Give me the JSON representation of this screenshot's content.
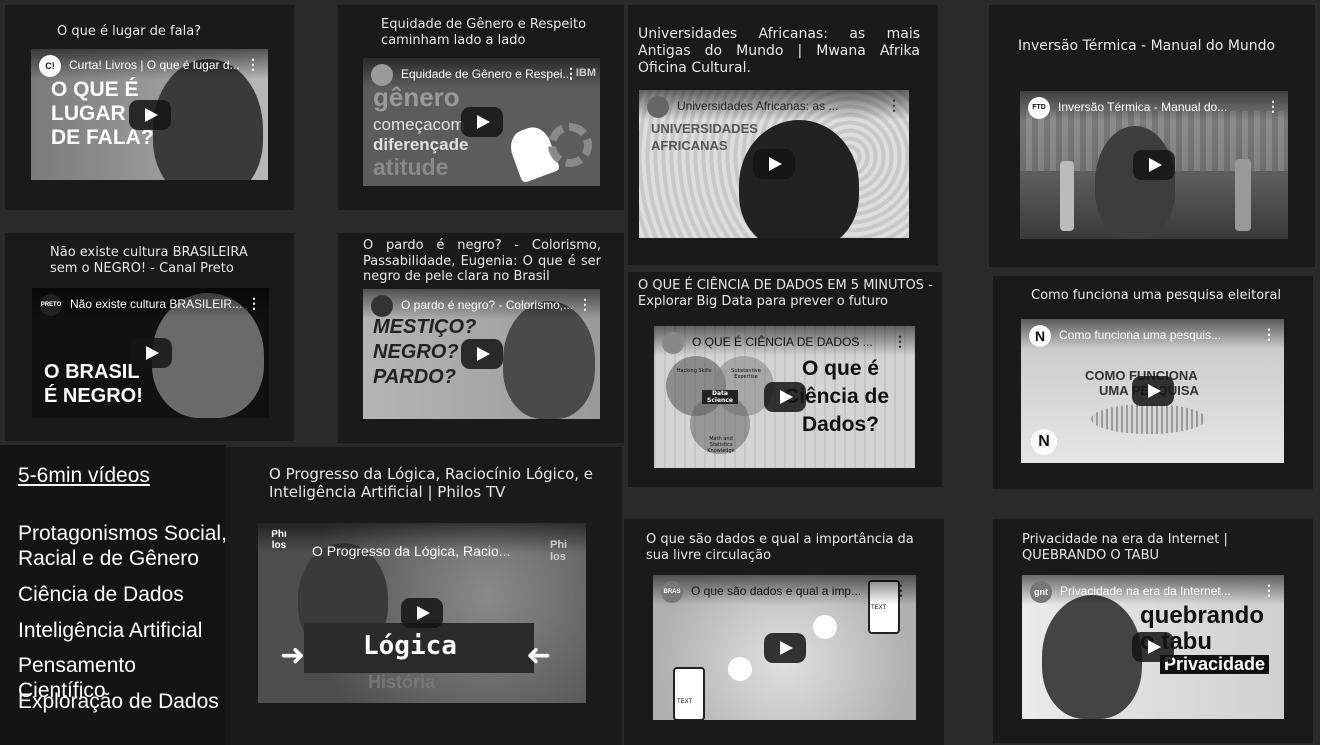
{
  "videos": [
    {
      "card_title": "O que é lugar de fala?",
      "thumb_title": "Curta! Livros | O que é lugar d...",
      "channel": "C!",
      "overlay": [
        "O QUE É",
        "LUGAR",
        "DE FALA?"
      ]
    },
    {
      "card_title": "Equidade de Gênero e Respeito caminham lado a lado",
      "thumb_title": "Equidade de Gênero e Respei...",
      "channel": "",
      "overlay": [
        "gênero",
        "começacom",
        "diferençade",
        "atitude"
      ],
      "corner_mark": "IBM"
    },
    {
      "card_title": "Universidades Africanas: as mais Antigas do Mundo | Mwana Afrika Oficina Cultural.",
      "thumb_title": "Universidades Africanas: as ...",
      "channel": "",
      "overlay": [
        "UNIVERSIDADES",
        "AFRICANAS"
      ]
    },
    {
      "card_title": "Inversão Térmica - Manual do Mundo",
      "thumb_title": "Inversão Térmica - Manual do...",
      "channel": "FTD",
      "overlay": []
    },
    {
      "card_title": "Não existe cultura BRASILEIRA sem o NEGRO! - Canal Preto",
      "thumb_title": "Não existe cultura BRASILEIR...",
      "channel": "PRETO",
      "overlay": [
        "O BRASIL",
        "É NEGRO!"
      ]
    },
    {
      "card_title": "O pardo é negro? - Colorismo, Passabilidade, Eugenia: O que é ser negro de pele clara no Brasil",
      "thumb_title": "O pardo é negro? - Colorismo,...",
      "channel": "",
      "overlay": [
        "MESTIÇO?",
        "NEGRO?",
        "PARDO?"
      ]
    },
    {
      "card_title": "O QUE É CIÊNCIA DE DADOS EM 5 MINUTOS - Explorar Big Data para prever o futuro",
      "thumb_title": "O QUE É CIÊNCIA DE DADOS ...",
      "channel": "",
      "overlay": [
        "O que é",
        "Ciência de",
        "Dados?"
      ],
      "venn": [
        "Hacking Skills",
        "Substantive Expertise",
        "Data Science",
        "Math and Statistics Knowledge"
      ]
    },
    {
      "card_title": "Como funciona uma pesquisa eleitoral",
      "thumb_title": "Como funciona uma pesquis...",
      "channel": "N",
      "overlay": [
        "COMO FUNCIONA",
        "UMA PESQUISA"
      ]
    },
    {
      "card_title": "O Progresso da Lógica, Raciocínio Lógico, e Inteligência Artificial | Philos TV",
      "thumb_title": "O Progresso da Lógica, Racio...",
      "channel": "Phi los",
      "overlay": [
        "Lógica",
        "História"
      ],
      "corner_mark": "Phi los"
    },
    {
      "card_title": "O que são dados e qual a importância da sua livre circulação",
      "thumb_title": "O que são dados e qual a imp...",
      "channel": "BRAS",
      "overlay": [],
      "labels": [
        "TEXT",
        "TEXT"
      ]
    },
    {
      "card_title": "Privacidade na era da Internet | QUEBRANDO O TABU",
      "thumb_title": "Privacidade na era da Internet...",
      "channel": "gnt",
      "overlay": [
        "quebrando",
        "o tabu",
        "Privacidade"
      ]
    }
  ],
  "sidebar": {
    "heading": "5-6min vídeos",
    "topics": [
      "Protagonismos Social, Racial e de Gênero",
      "Ciência de Dados",
      "Inteligência Artificial",
      "Pensamento Científico",
      "Exploração de Dados"
    ]
  },
  "colors": {
    "page_bg": "#2a2a2a",
    "card_bg": "#1a1a1a",
    "text": "#e8e8e8"
  }
}
